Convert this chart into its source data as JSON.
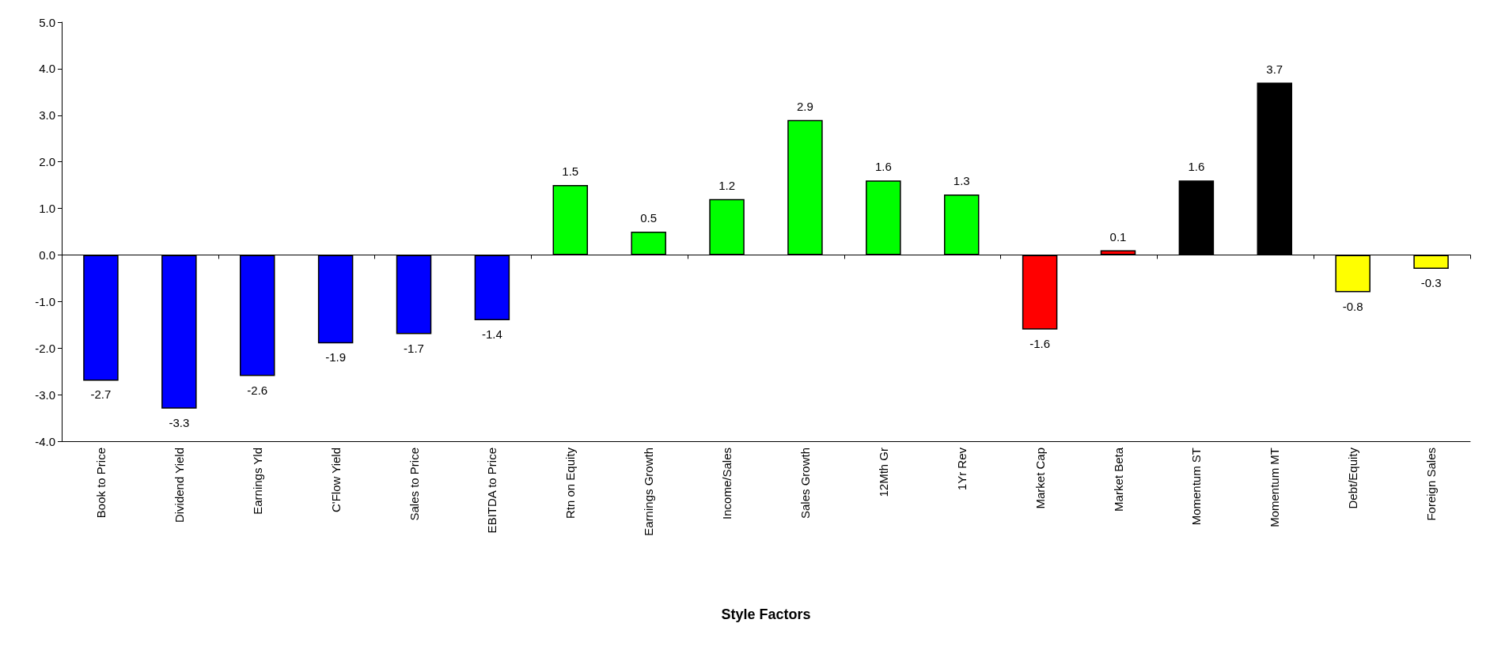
{
  "chart_data": {
    "type": "bar",
    "xlabel": "Style Factors",
    "categories": [
      "Book to Price",
      "Dividend Yield",
      "Earnings Yld",
      "C'Flow Yield",
      "Sales to Price",
      "EBITDA to Price",
      "Rtn on Equity",
      "Earnings Growth",
      "Income/Sales",
      "Sales Growth",
      "12Mth Gr",
      "1Yr Rev",
      "Market Cap",
      "Market Beta",
      "Momentum ST",
      "Momentum MT",
      "Debt/Equity",
      "Foreign Sales"
    ],
    "values": [
      -2.7,
      -3.3,
      -2.6,
      -1.9,
      -1.7,
      -1.4,
      1.5,
      0.5,
      1.2,
      2.9,
      1.6,
      1.3,
      -1.6,
      0.1,
      1.6,
      3.7,
      -0.8,
      -0.3
    ],
    "colors": [
      "#0000ff",
      "#0000ff",
      "#0000ff",
      "#0000ff",
      "#0000ff",
      "#0000ff",
      "#00ff00",
      "#00ff00",
      "#00ff00",
      "#00ff00",
      "#00ff00",
      "#00ff00",
      "#ff0000",
      "#ff0000",
      "#000000",
      "#000000",
      "#ffff00",
      "#ffff00"
    ],
    "ylim": [
      -4,
      5
    ],
    "yticks": [
      {
        "value": -4,
        "label": "-4.0"
      },
      {
        "value": -3,
        "label": "-3.0"
      },
      {
        "value": -2,
        "label": "-2.0"
      },
      {
        "value": -1,
        "label": "-1.0"
      },
      {
        "value": 0,
        "label": "0.0"
      },
      {
        "value": 1,
        "label": "1.0"
      },
      {
        "value": 2,
        "label": "2.0"
      },
      {
        "value": 3,
        "label": "3.0"
      },
      {
        "value": 4,
        "label": "4.0"
      },
      {
        "value": 5,
        "label": "5.0"
      }
    ],
    "data_labels": true
  }
}
